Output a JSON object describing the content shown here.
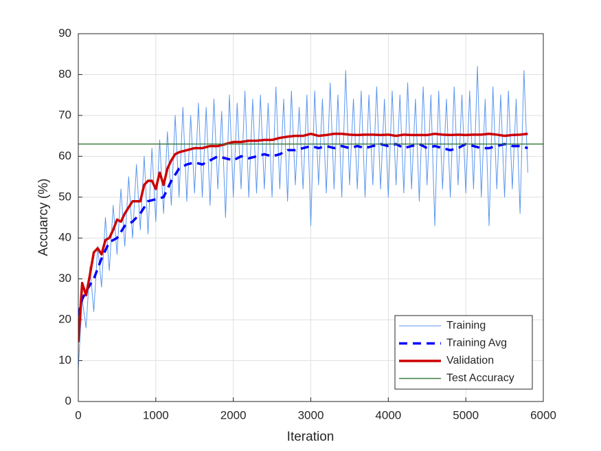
{
  "chart_data": {
    "type": "line",
    "xlabel": "Iteration",
    "ylabel": "Accuarcy (%)",
    "xlim": [
      0,
      6000
    ],
    "ylim": [
      0,
      90
    ],
    "xticks": [
      0,
      1000,
      2000,
      3000,
      4000,
      5000,
      6000
    ],
    "yticks": [
      0,
      10,
      20,
      30,
      40,
      50,
      60,
      70,
      80,
      90
    ],
    "grid": true,
    "legend": "southeast",
    "series": [
      {
        "name": "Training",
        "color": "#5a96ee",
        "line_style": "solid",
        "line_width": 1,
        "x": [
          0,
          50,
          100,
          150,
          200,
          250,
          300,
          350,
          400,
          450,
          500,
          550,
          600,
          650,
          700,
          750,
          800,
          850,
          900,
          950,
          1000,
          1050,
          1100,
          1150,
          1200,
          1250,
          1300,
          1350,
          1400,
          1450,
          1500,
          1550,
          1600,
          1650,
          1700,
          1750,
          1800,
          1850,
          1900,
          1950,
          2000,
          2050,
          2100,
          2150,
          2200,
          2250,
          2300,
          2350,
          2400,
          2450,
          2500,
          2550,
          2600,
          2650,
          2700,
          2750,
          2800,
          2850,
          2900,
          2950,
          3000,
          3050,
          3100,
          3150,
          3200,
          3250,
          3300,
          3350,
          3400,
          3450,
          3500,
          3550,
          3600,
          3650,
          3700,
          3750,
          3800,
          3850,
          3900,
          3950,
          4000,
          4050,
          4100,
          4150,
          4200,
          4250,
          4300,
          4350,
          4400,
          4450,
          4500,
          4550,
          4600,
          4650,
          4700,
          4750,
          4800,
          4850,
          4900,
          4950,
          5000,
          5050,
          5100,
          5150,
          5200,
          5250,
          5300,
          5350,
          5400,
          5450,
          5500,
          5550,
          5600,
          5650,
          5700,
          5750,
          5800
        ],
        "values": [
          8,
          25,
          18,
          33,
          22,
          38,
          28,
          45,
          32,
          48,
          36,
          52,
          38,
          55,
          40,
          58,
          42,
          60,
          41,
          62,
          44,
          64,
          46,
          66,
          48,
          70,
          50,
          72,
          49,
          70,
          51,
          73,
          50,
          72,
          48,
          74,
          52,
          71,
          45,
          75,
          50,
          73,
          52,
          76,
          50,
          74,
          51,
          75,
          52,
          73,
          50,
          77,
          52,
          74,
          49,
          76,
          53,
          72,
          52,
          75,
          43,
          76,
          53,
          74,
          51,
          78,
          52,
          75,
          50,
          81,
          53,
          74,
          52,
          76,
          50,
          75,
          53,
          77,
          52,
          74,
          50,
          76,
          53,
          75,
          51,
          78,
          52,
          74,
          49,
          77,
          53,
          75,
          43,
          76,
          52,
          74,
          50,
          77,
          53,
          75,
          51,
          76,
          52,
          82,
          50,
          74,
          43,
          77,
          52,
          75,
          50,
          76,
          52,
          74,
          46,
          81,
          56
        ]
      },
      {
        "name": "Training Avg",
        "color": "#0000ff",
        "line_style": "dashed",
        "line_width": 3.5,
        "x": [
          0,
          50,
          100,
          200,
          300,
          400,
          500,
          600,
          700,
          800,
          900,
          1000,
          1100,
          1200,
          1300,
          1400,
          1500,
          1600,
          1700,
          1800,
          1900,
          2000,
          2100,
          2200,
          2300,
          2400,
          2500,
          2600,
          2700,
          2800,
          2900,
          3000,
          3100,
          3200,
          3300,
          3400,
          3500,
          3600,
          3700,
          3800,
          3900,
          4000,
          4100,
          4200,
          4300,
          4400,
          4500,
          4600,
          4700,
          4800,
          4900,
          5000,
          5100,
          5200,
          5300,
          5400,
          5500,
          5600,
          5700,
          5800
        ],
        "values": [
          21,
          25,
          27,
          30,
          35,
          39,
          40,
          43,
          44,
          46,
          49,
          49.5,
          50,
          54,
          57,
          58,
          58.5,
          58,
          59,
          60,
          59.5,
          59,
          60,
          59.5,
          60,
          60.5,
          60,
          60.5,
          61.5,
          61.5,
          62,
          62.5,
          62,
          62.5,
          62,
          62.5,
          62,
          62.5,
          62,
          62.5,
          63,
          62.5,
          63,
          62,
          62.5,
          63,
          62,
          62.5,
          62,
          61.5,
          62,
          63,
          62.5,
          62,
          62,
          62.5,
          63,
          62.5,
          62.5,
          62
        ]
      },
      {
        "name": "Validation",
        "color": "#cc0000",
        "line_style": "solid",
        "line_width": 3.5,
        "x": [
          0,
          50,
          100,
          150,
          200,
          250,
          300,
          350,
          400,
          450,
          500,
          550,
          600,
          700,
          800,
          850,
          900,
          950,
          1000,
          1050,
          1100,
          1150,
          1200,
          1250,
          1300,
          1400,
          1500,
          1600,
          1700,
          1800,
          1900,
          2000,
          2100,
          2200,
          2300,
          2400,
          2500,
          2600,
          2700,
          2800,
          2900,
          3000,
          3100,
          3200,
          3300,
          3400,
          3500,
          3600,
          3700,
          3800,
          3900,
          4000,
          4100,
          4200,
          4300,
          4400,
          4500,
          4600,
          4700,
          4800,
          4900,
          5000,
          5100,
          5200,
          5300,
          5400,
          5500,
          5600,
          5700,
          5800
        ],
        "values": [
          14.5,
          29,
          26,
          31,
          36.5,
          37.5,
          36,
          39.5,
          40,
          42,
          44.5,
          44,
          46,
          49,
          49,
          53,
          54,
          54,
          52,
          56,
          53,
          57,
          59,
          60.5,
          61,
          61.5,
          62,
          62,
          62.5,
          62.5,
          63,
          63.5,
          63.5,
          63.8,
          63.8,
          64,
          64,
          64.5,
          64.8,
          65,
          65,
          65.5,
          65,
          65.2,
          65.5,
          65.5,
          65.3,
          65.2,
          65.3,
          65.3,
          65.2,
          65.3,
          65,
          65.3,
          65.2,
          65.2,
          65.2,
          65.5,
          65.3,
          65.2,
          65.3,
          65.2,
          65.3,
          65.3,
          65.5,
          65.3,
          65,
          65.2,
          65.3,
          65.5
        ]
      },
      {
        "name": "Test Accuracy",
        "color": "#3c7a3c",
        "line_style": "solid",
        "line_width": 1.5,
        "x": [
          0,
          6000
        ],
        "values": [
          63,
          63
        ]
      }
    ]
  }
}
